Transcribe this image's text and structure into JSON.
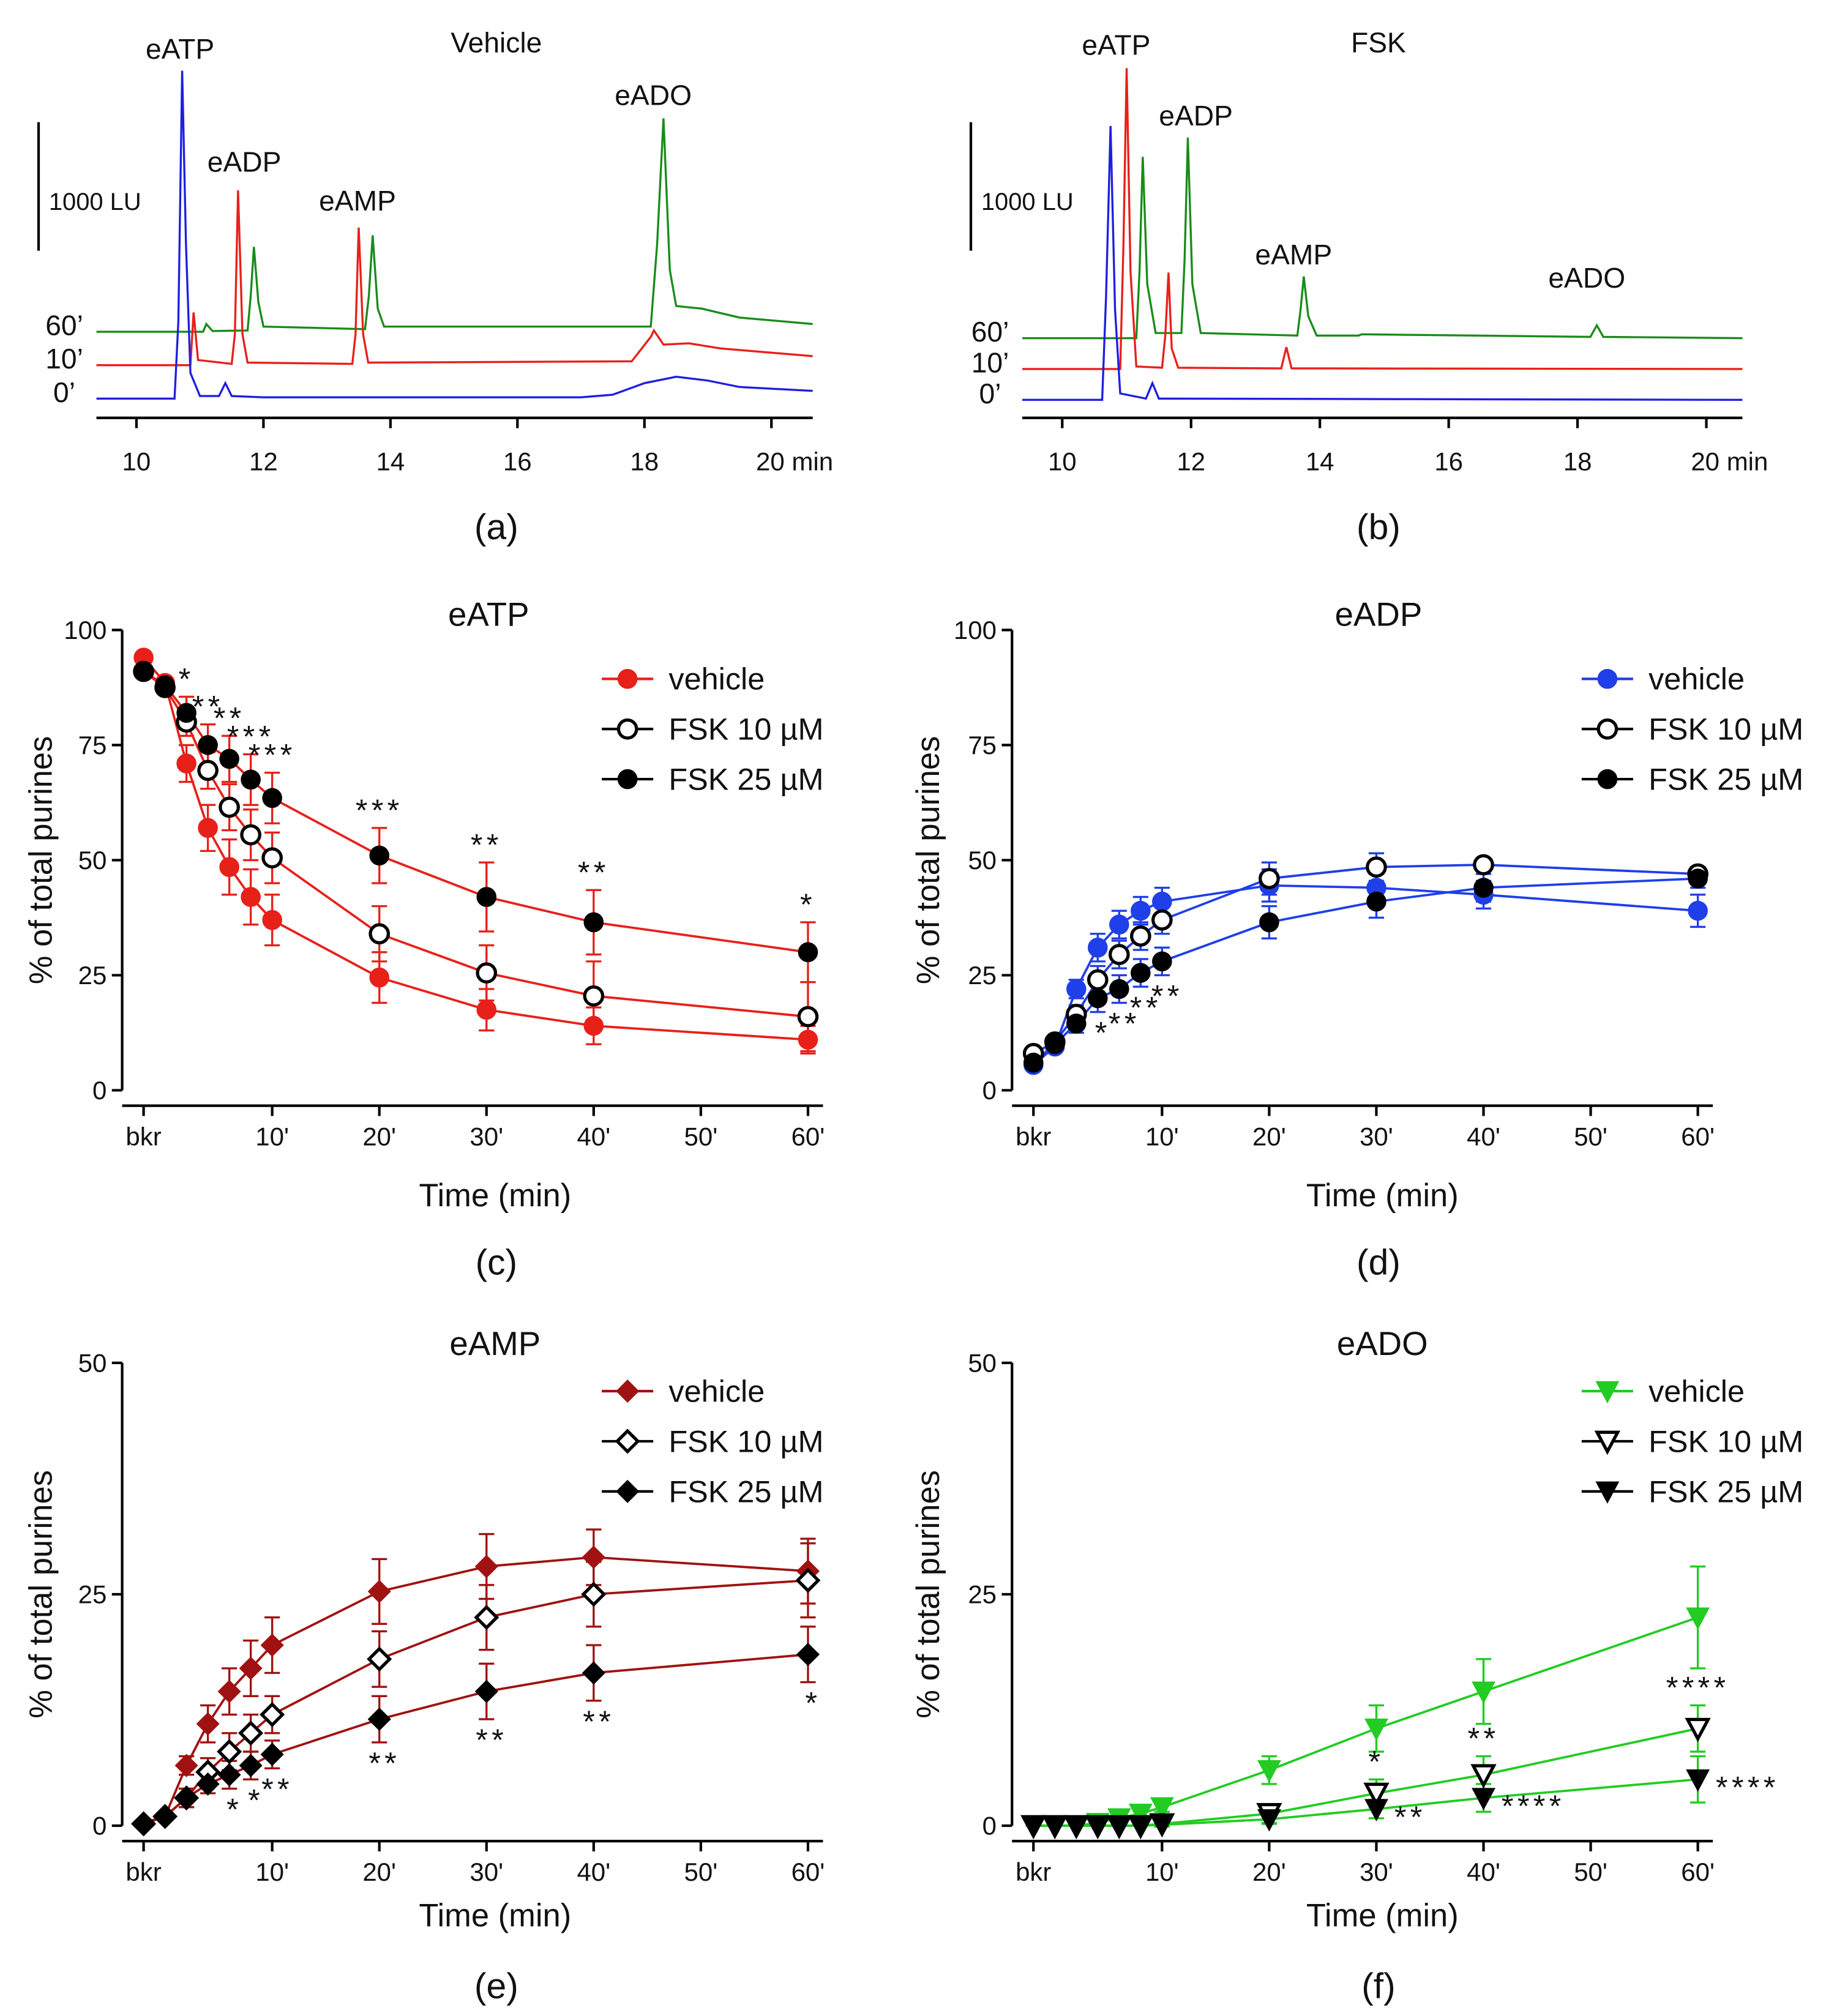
{
  "chart_data": [
    {
      "type": "chromatogram",
      "title": "Vehicle",
      "panel_label": "(a)",
      "xlim": [
        9.37,
        20.65
      ],
      "xticks": [
        10,
        12,
        14,
        16,
        18,
        {
          "value": 20,
          "label": "20 min"
        }
      ],
      "ylim": [
        -150,
        2700
      ],
      "scale_bar": {
        "value": 1000,
        "label": "1000 LU"
      },
      "peak_labels": [
        "eATP",
        "eADP",
        "eAMP",
        "eADO"
      ],
      "series": [
        {
          "name": "60’",
          "color": "#1a8c1a",
          "x": [
            9.37,
            11.05,
            11.1,
            11.2,
            11.75,
            11.8,
            11.85,
            11.92,
            12.0,
            13.6,
            13.66,
            13.72,
            13.8,
            13.9,
            18.1,
            18.2,
            18.3,
            18.4,
            18.5,
            18.9,
            19.5,
            20.65
          ],
          "values": [
            520,
            520,
            580,
            525,
            530,
            800,
            1180,
            750,
            560,
            540,
            800,
            1270,
            700,
            560,
            560,
            1200,
            2180,
            1000,
            720,
            700,
            630,
            580
          ]
        },
        {
          "name": "10’",
          "color": "#e8201a",
          "x": [
            9.37,
            10.85,
            10.9,
            10.97,
            11.5,
            11.55,
            11.6,
            11.67,
            11.75,
            13.4,
            13.45,
            13.5,
            13.57,
            13.65,
            17.8,
            18.1,
            18.15,
            18.3,
            18.7,
            19.2,
            20.65
          ],
          "values": [
            260,
            260,
            670,
            300,
            270,
            500,
            1620,
            500,
            280,
            270,
            500,
            1330,
            500,
            280,
            290,
            480,
            530,
            420,
            430,
            390,
            330
          ]
        },
        {
          "name": "0’",
          "color": "#1f1fe0",
          "x": [
            9.37,
            10.6,
            10.66,
            10.72,
            10.78,
            10.85,
            11.0,
            11.3,
            11.4,
            11.5,
            12.0,
            17.0,
            17.5,
            18.0,
            18.5,
            19.0,
            19.5,
            20.65
          ],
          "values": [
            0,
            0,
            600,
            2550,
            1200,
            200,
            20,
            20,
            120,
            20,
            10,
            10,
            30,
            120,
            170,
            140,
            90,
            60
          ]
        }
      ]
    },
    {
      "type": "chromatogram",
      "title": "FSK",
      "panel_label": "(b)",
      "xlim": [
        9.38,
        20.56
      ],
      "xticks": [
        10,
        12,
        14,
        16,
        18,
        {
          "value": 20,
          "label": "20 min"
        }
      ],
      "ylim": [
        -140,
        2710
      ],
      "scale_bar": {
        "value": 1000,
        "label": "1000 LU"
      },
      "peak_labels": [
        "eATP",
        "eADP",
        "eAMP",
        "eADO"
      ],
      "series": [
        {
          "name": "60’",
          "color": "#1a8c1a",
          "x": [
            9.38,
            11.15,
            11.2,
            11.25,
            11.32,
            11.45,
            11.85,
            11.9,
            11.95,
            12.02,
            12.15,
            13.65,
            13.7,
            13.75,
            13.82,
            13.95,
            14.6,
            14.65,
            18.2,
            18.3,
            18.4,
            20.56
          ],
          "values": [
            480,
            480,
            1000,
            1890,
            900,
            520,
            520,
            1100,
            2040,
            900,
            520,
            500,
            700,
            960,
            650,
            500,
            500,
            510,
            490,
            580,
            490,
            480
          ]
        },
        {
          "name": "10’",
          "color": "#e8201a",
          "x": [
            9.38,
            10.9,
            10.95,
            11.0,
            11.06,
            11.15,
            11.55,
            11.6,
            11.65,
            11.7,
            11.8,
            13.4,
            13.48,
            13.56,
            20.56
          ],
          "values": [
            240,
            240,
            1200,
            2580,
            1000,
            260,
            250,
            500,
            990,
            400,
            250,
            245,
            410,
            245,
            240
          ]
        },
        {
          "name": "0’",
          "color": "#1f1fe0",
          "x": [
            9.38,
            10.62,
            10.68,
            10.75,
            10.82,
            10.9,
            11.3,
            11.4,
            11.5,
            20.56
          ],
          "values": [
            0,
            0,
            800,
            2130,
            700,
            50,
            10,
            130,
            10,
            0
          ]
        }
      ]
    },
    {
      "type": "line",
      "title": "eATP",
      "panel_label": "(c)",
      "x_label": "Time (min)",
      "y_label": "% of total purines",
      "line_color": "#e8201a",
      "legend": "upper right",
      "xlim": [
        -4,
        61.4
      ],
      "xticks": [
        {
          "value": -2,
          "label": "bkr"
        },
        {
          "value": 10,
          "label": "10'"
        },
        {
          "value": 20,
          "label": "20'"
        },
        {
          "value": 30,
          "label": "30'"
        },
        {
          "value": 40,
          "label": "40'"
        },
        {
          "value": 50,
          "label": "50'"
        },
        {
          "value": 60,
          "label": "60'"
        }
      ],
      "ylim": [
        0,
        100
      ],
      "yticks": [
        0,
        25,
        50,
        75,
        100
      ],
      "x": [
        -2,
        0,
        2,
        4,
        6,
        8,
        10,
        20,
        30,
        40,
        60
      ],
      "series": [
        {
          "name": "vehicle",
          "color": "#e8201a",
          "marker": "circle",
          "filled": true,
          "values": [
            94,
            88.5,
            71,
            57,
            48.5,
            42,
            37,
            24.5,
            17.5,
            14,
            11
          ],
          "errors": [
            1,
            1,
            4,
            5,
            6,
            6,
            5.5,
            5.5,
            4.5,
            4,
            3
          ]
        },
        {
          "name": "FSK 10 µM",
          "color": "#000000",
          "marker": "circle",
          "filled": false,
          "values": [
            91,
            87.5,
            80,
            69.5,
            61.5,
            55.5,
            50.5,
            34,
            25.5,
            20.5,
            16
          ],
          "errors": [
            1,
            1,
            3,
            4,
            5,
            5.5,
            5.5,
            6,
            6,
            7.5,
            7.5
          ]
        },
        {
          "name": "FSK 25 µM",
          "color": "#000000",
          "marker": "circle",
          "filled": true,
          "values": [
            91,
            88,
            82,
            75,
            72,
            67.5,
            63.5,
            51,
            42,
            36.5,
            30
          ],
          "errors": [
            1,
            1,
            3.5,
            4.5,
            5,
            5.5,
            5.5,
            6,
            7.5,
            7,
            6.5
          ],
          "significance": [
            null,
            null,
            "*",
            "**",
            "**",
            "***",
            "***",
            "***",
            "**",
            "**",
            "*"
          ],
          "significance_side": "above"
        }
      ]
    },
    {
      "type": "line",
      "title": "eADP",
      "panel_label": "(d)",
      "x_label": "Time (min)",
      "y_label": "% of total purines",
      "line_color": "#1f3fe8",
      "legend": "upper right",
      "xlim": [
        -4,
        61.4
      ],
      "xticks": [
        {
          "value": -2,
          "label": "bkr"
        },
        {
          "value": 10,
          "label": "10'"
        },
        {
          "value": 20,
          "label": "20'"
        },
        {
          "value": 30,
          "label": "30'"
        },
        {
          "value": 40,
          "label": "40'"
        },
        {
          "value": 50,
          "label": "50'"
        },
        {
          "value": 60,
          "label": "60'"
        }
      ],
      "ylim": [
        0,
        100
      ],
      "yticks": [
        0,
        25,
        50,
        75,
        100
      ],
      "x": [
        -2,
        0,
        2,
        4,
        6,
        8,
        10,
        20,
        30,
        40,
        60
      ],
      "series": [
        {
          "name": "vehicle",
          "color": "#1f3fe8",
          "marker": "circle",
          "filled": true,
          "values": [
            5.5,
            9.5,
            22,
            31,
            36,
            39,
            41,
            44.5,
            44,
            42.5,
            39
          ],
          "errors": [
            1,
            1,
            2,
            3,
            3,
            3,
            3,
            3.5,
            3,
            3,
            3.5
          ]
        },
        {
          "name": "FSK 10 µM",
          "color": "#000000",
          "marker": "circle",
          "filled": false,
          "values": [
            8,
            10.5,
            16.5,
            24,
            29.5,
            33.5,
            37,
            46,
            48.5,
            49,
            47
          ],
          "errors": [
            1,
            1,
            2,
            3,
            3,
            3,
            3,
            3.5,
            3,
            1,
            1.5
          ]
        },
        {
          "name": "FSK 25 µM",
          "color": "#000000",
          "marker": "circle",
          "filled": true,
          "values": [
            6,
            10,
            14.5,
            20,
            22,
            25.5,
            28,
            36.5,
            41,
            44,
            46
          ],
          "errors": [
            1,
            1,
            2,
            3,
            3,
            3,
            3,
            3.5,
            3.5,
            3,
            2
          ],
          "significance": [
            null,
            null,
            null,
            "*",
            "**",
            "**",
            "**",
            null,
            null,
            null,
            null
          ],
          "significance_side": "below"
        }
      ]
    },
    {
      "type": "line",
      "title": "eAMP",
      "panel_label": "(e)",
      "x_label": "Time (min)",
      "y_label": "% of total purines",
      "line_color": "#a01212",
      "legend": "upper right",
      "xlim": [
        -4,
        61.4
      ],
      "xticks": [
        {
          "value": -2,
          "label": "bkr"
        },
        {
          "value": 10,
          "label": "10'"
        },
        {
          "value": 20,
          "label": "20'"
        },
        {
          "value": 30,
          "label": "30'"
        },
        {
          "value": 40,
          "label": "40'"
        },
        {
          "value": 50,
          "label": "50'"
        },
        {
          "value": 60,
          "label": "60'"
        }
      ],
      "ylim": [
        0,
        50
      ],
      "yticks": [
        0,
        25,
        50
      ],
      "x": [
        -2,
        0,
        2,
        4,
        6,
        8,
        10,
        20,
        30,
        40,
        60
      ],
      "series": [
        {
          "name": "vehicle",
          "color": "#a01212",
          "marker": "diamond",
          "filled": true,
          "values": [
            0.3,
            1,
            6.5,
            11,
            14.5,
            17,
            19.5,
            25.3,
            28,
            29,
            27.5
          ],
          "errors": [
            0.2,
            0.4,
            1,
            2,
            2.5,
            3,
            3,
            3.5,
            3.5,
            3,
            3.5
          ]
        },
        {
          "name": "FSK 10 µM",
          "color": "#000000",
          "marker": "diamond",
          "filled": false,
          "values": [
            0.2,
            1,
            3,
            5.8,
            8,
            10,
            12,
            18,
            22.5,
            25,
            26.5
          ],
          "errors": [
            0.2,
            0.4,
            1,
            1.5,
            2,
            2,
            2,
            3,
            3.5,
            3.5,
            4
          ]
        },
        {
          "name": "FSK 25 µM",
          "color": "#000000",
          "marker": "diamond",
          "filled": true,
          "values": [
            0.2,
            1,
            3,
            4.5,
            5.5,
            6.5,
            7.7,
            11.5,
            14.5,
            16.5,
            18.5
          ],
          "errors": [
            0.2,
            0.4,
            1,
            1,
            1.5,
            1.5,
            1.5,
            2.5,
            3,
            3,
            3
          ],
          "significance": [
            null,
            null,
            null,
            null,
            "*",
            "*",
            "**",
            "**",
            "**",
            "**",
            "*"
          ],
          "significance_side": "below"
        }
      ]
    },
    {
      "type": "line",
      "title": "eADO",
      "panel_label": "(f)",
      "x_label": "Time (min)",
      "y_label": "% of total purines",
      "line_color": "#22cc22",
      "legend": "upper right",
      "xlim": [
        -4,
        61.4
      ],
      "xticks": [
        {
          "value": -2,
          "label": "bkr"
        },
        {
          "value": 10,
          "label": "10'"
        },
        {
          "value": 20,
          "label": "20'"
        },
        {
          "value": 30,
          "label": "30'"
        },
        {
          "value": 40,
          "label": "40'"
        },
        {
          "value": 50,
          "label": "50'"
        },
        {
          "value": 60,
          "label": "60'"
        }
      ],
      "ylim": [
        0,
        50
      ],
      "yticks": [
        0,
        25,
        50
      ],
      "x": [
        -2,
        0,
        2,
        4,
        6,
        8,
        10,
        20,
        30,
        40,
        60
      ],
      "series": [
        {
          "name": "vehicle",
          "color": "#22cc22",
          "marker": "triangle",
          "filled": true,
          "values": [
            0,
            0,
            0,
            0.3,
            0.8,
            1.3,
            2,
            6,
            10.5,
            14.5,
            22.5
          ],
          "errors": [
            0,
            0,
            0,
            0.2,
            0.3,
            0.5,
            0.5,
            1.5,
            2.5,
            3.5,
            5.5
          ]
        },
        {
          "name": "FSK 10 µM",
          "color": "#000000",
          "marker": "triangle",
          "filled": false,
          "values": [
            0,
            0,
            0,
            0,
            0,
            0,
            0.2,
            1.3,
            3.5,
            5.5,
            10.5
          ],
          "errors": [
            0,
            0,
            0,
            0,
            0,
            0,
            0.3,
            1,
            1.5,
            2,
            2.5
          ],
          "significance": [
            null,
            null,
            null,
            null,
            null,
            null,
            null,
            null,
            "*",
            "**",
            "****"
          ],
          "significance_side": "above"
        },
        {
          "name": "FSK 25 µM",
          "color": "#000000",
          "marker": "triangle",
          "filled": true,
          "values": [
            0,
            0,
            0,
            0,
            0,
            0,
            0.1,
            0.7,
            1.8,
            3,
            5
          ],
          "errors": [
            0,
            0,
            0,
            0,
            0,
            0,
            0.2,
            0.5,
            1,
            1.5,
            2.5
          ],
          "significance": [
            null,
            null,
            null,
            null,
            null,
            null,
            null,
            null,
            "**",
            "****",
            "****"
          ],
          "significance_side": "right"
        }
      ]
    }
  ]
}
